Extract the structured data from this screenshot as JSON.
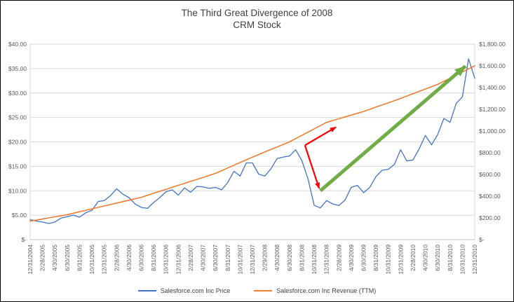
{
  "title": {
    "line1": "The Third Great Divergence of 2008",
    "line2": "CRM Stock"
  },
  "legend": [
    {
      "label": "Salesforce.com Inc Price",
      "color": "#4472c4"
    },
    {
      "label": "Salesforce.com Inc Revenue (TTM)",
      "color": "#ed7d31"
    }
  ],
  "chart_data": {
    "type": "line",
    "title": "The Third Great Divergence of 2008 CRM Stock",
    "grid": true,
    "legend_position": "bottom",
    "left_axis": {
      "min": 0,
      "max": 40,
      "ticks": [
        {
          "label": "$40.00",
          "value": 40
        },
        {
          "label": "$35.00",
          "value": 35
        },
        {
          "label": "$30.00",
          "value": 30
        },
        {
          "label": "$25.00",
          "value": 25
        },
        {
          "label": "$20.00",
          "value": 20
        },
        {
          "label": "$15.00",
          "value": 15
        },
        {
          "label": "$10.00",
          "value": 10
        },
        {
          "label": "$5.00",
          "value": 5
        },
        {
          "label": "$-",
          "value": 0
        }
      ]
    },
    "right_axis": {
      "min": 0,
      "max": 1800,
      "ticks": [
        {
          "label": "$1,800.00",
          "value": 1800
        },
        {
          "label": "$1,600.00",
          "value": 1600
        },
        {
          "label": "$1,400.00",
          "value": 1400
        },
        {
          "label": "$1,200.00",
          "value": 1200
        },
        {
          "label": "$1,000.00",
          "value": 1000
        },
        {
          "label": "$800.00",
          "value": 800
        },
        {
          "label": "$600.00",
          "value": 600
        },
        {
          "label": "$400.00",
          "value": 400
        },
        {
          "label": "$200.00",
          "value": 200
        },
        {
          "label": "$-",
          "value": 0
        }
      ]
    },
    "x_tick_labels": [
      "12/31/2004",
      "2/28/2005",
      "4/30/2005",
      "6/30/2005",
      "8/31/2005",
      "10/31/2005",
      "12/31/2005",
      "2/28/2006",
      "4/30/2006",
      "6/30/2006",
      "8/31/2006",
      "10/31/2006",
      "12/31/2006",
      "2/28/2007",
      "4/30/2007",
      "6/30/2007",
      "8/31/2007",
      "10/31/2007",
      "12/31/2007",
      "2/29/2008",
      "4/30/2008",
      "6/30/2008",
      "8/31/2008",
      "10/31/2008",
      "12/31/2008",
      "2/28/2009",
      "4/30/2009",
      "6/30/2009",
      "8/31/2009",
      "10/31/2009",
      "12/31/2009",
      "2/28/2010",
      "4/30/2010",
      "6/30/2010",
      "8/31/2010",
      "10/31/2010",
      "12/31/2010"
    ],
    "x_months_per_tick": 2,
    "series": [
      {
        "name": "Salesforce.com Inc Price",
        "axis": "left",
        "color": "#4472c4",
        "width": 1.3,
        "values": [
          4.1,
          3.8,
          3.6,
          3.3,
          3.6,
          4.4,
          4.7,
          5.0,
          4.6,
          5.5,
          6.0,
          7.8,
          8.0,
          9.0,
          10.4,
          9.3,
          8.6,
          7.3,
          6.6,
          6.4,
          7.6,
          8.6,
          9.8,
          10.2,
          9.1,
          10.6,
          9.7,
          10.9,
          10.8,
          10.5,
          10.7,
          10.2,
          11.7,
          14.0,
          13.0,
          15.7,
          15.7,
          13.4,
          13.0,
          14.5,
          16.6,
          16.9,
          17.1,
          18.4,
          16.2,
          12.4,
          7.0,
          6.5,
          8.0,
          7.3,
          7.0,
          8.1,
          10.7,
          11.1,
          9.6,
          10.7,
          12.9,
          14.2,
          14.4,
          15.4,
          18.4,
          16.1,
          16.3,
          18.6,
          21.3,
          19.4,
          21.5,
          24.8,
          24.0,
          27.9,
          29.2,
          37.0,
          33.0
        ]
      },
      {
        "name": "Salesforce.com Inc Revenue (TTM)",
        "axis": "right",
        "color": "#ed7d31",
        "width": 1.6,
        "values": [
          170,
          180,
          190,
          200,
          210,
          220,
          230,
          243,
          257,
          270,
          283,
          297,
          310,
          323,
          337,
          350,
          363,
          377,
          390,
          408,
          427,
          445,
          463,
          482,
          500,
          518,
          537,
          555,
          573,
          592,
          610,
          635,
          660,
          685,
          710,
          735,
          760,
          783,
          807,
          830,
          853,
          877,
          900,
          930,
          960,
          990,
          1020,
          1050,
          1080,
          1097,
          1113,
          1130,
          1147,
          1163,
          1180,
          1200,
          1220,
          1240,
          1260,
          1280,
          1300,
          1322,
          1343,
          1365,
          1387,
          1408,
          1430,
          1458,
          1487,
          1515,
          1543,
          1572,
          1600
        ]
      }
    ],
    "annotations": [
      {
        "type": "arrow",
        "name": "red-divergence-arrow-up",
        "color": "#ff0000",
        "width": 2.2,
        "head": 9,
        "axis": "left",
        "from": [
          44.5,
          19.3
        ],
        "to": [
          49.5,
          23.0
        ]
      },
      {
        "type": "arrow",
        "name": "red-divergence-arrow-down",
        "color": "#ff0000",
        "width": 2.2,
        "head": 9,
        "axis": "left",
        "from": [
          44.5,
          19.3
        ],
        "to": [
          46.8,
          10.5
        ]
      },
      {
        "type": "arrow",
        "name": "green-recovery-arrow",
        "color": "#70ad47",
        "width": 5,
        "head": 16,
        "axis": "left",
        "from": [
          47.0,
          10.0
        ],
        "to": [
          70.5,
          35.5
        ]
      }
    ]
  }
}
